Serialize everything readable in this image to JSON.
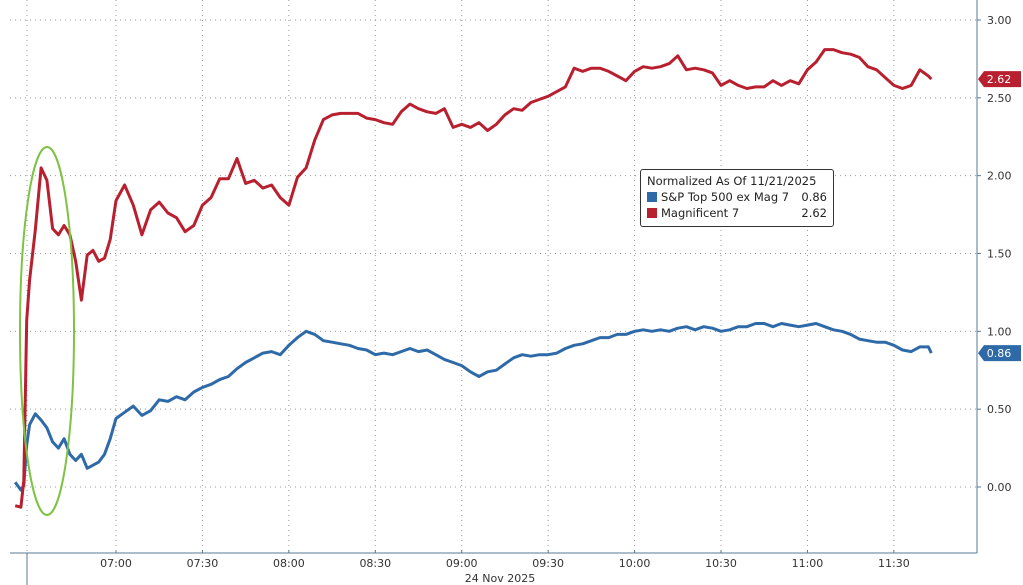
{
  "chart_data": {
    "type": "line",
    "xlabel": "24 Nov 2025",
    "x_ticks": [
      "07:00",
      "07:30",
      "08:00",
      "08:30",
      "09:00",
      "09:30",
      "10:00",
      "10:30",
      "11:00",
      "11:30"
    ],
    "y_ticks": [
      "0.00",
      "0.50",
      "1.00",
      "1.50",
      "2.00",
      "2.50",
      "3.00"
    ],
    "ylim": [
      -0.4,
      3.1
    ],
    "y_axis_side": "right",
    "grid": true,
    "legend_position": "center-right",
    "legend_title": "Normalized As Of 11/21/2025",
    "x": [
      "06:25",
      "06:27",
      "06:28",
      "06:29",
      "06:30",
      "06:32",
      "06:34",
      "06:36",
      "06:38",
      "06:40",
      "06:42",
      "06:44",
      "06:46",
      "06:48",
      "06:50",
      "06:52",
      "06:54",
      "06:56",
      "06:58",
      "07:00",
      "07:03",
      "07:06",
      "07:09",
      "07:12",
      "07:15",
      "07:18",
      "07:21",
      "07:24",
      "07:27",
      "07:30",
      "07:33",
      "07:36",
      "07:39",
      "07:42",
      "07:45",
      "07:48",
      "07:51",
      "07:54",
      "07:57",
      "08:00",
      "08:03",
      "08:06",
      "08:09",
      "08:12",
      "08:15",
      "08:18",
      "08:21",
      "08:24",
      "08:27",
      "08:30",
      "08:33",
      "08:36",
      "08:39",
      "08:42",
      "08:45",
      "08:48",
      "08:51",
      "08:54",
      "08:57",
      "09:00",
      "09:03",
      "09:06",
      "09:09",
      "09:12",
      "09:15",
      "09:18",
      "09:21",
      "09:24",
      "09:27",
      "09:30",
      "09:33",
      "09:36",
      "09:39",
      "09:42",
      "09:45",
      "09:48",
      "09:51",
      "09:54",
      "09:57",
      "10:00",
      "10:03",
      "10:06",
      "10:09",
      "10:12",
      "10:15",
      "10:18",
      "10:21",
      "10:24",
      "10:27",
      "10:30",
      "10:33",
      "10:36",
      "10:39",
      "10:42",
      "10:45",
      "10:48",
      "10:51",
      "10:54",
      "10:57",
      "11:00",
      "11:03",
      "11:06",
      "11:09",
      "11:12",
      "11:15",
      "11:18",
      "11:21",
      "11:24",
      "11:27",
      "11:30",
      "11:33",
      "11:36",
      "11:39",
      "11:42",
      "11:43"
    ],
    "series": [
      {
        "name": "S&P Top 500 ex Mag 7",
        "last": "0.86",
        "color": "#2f6aa8",
        "values": [
          0.03,
          -0.02,
          0.01,
          0.27,
          0.4,
          0.47,
          0.43,
          0.38,
          0.29,
          0.25,
          0.31,
          0.21,
          0.17,
          0.21,
          0.12,
          0.14,
          0.16,
          0.21,
          0.31,
          0.44,
          0.48,
          0.52,
          0.46,
          0.49,
          0.56,
          0.55,
          0.58,
          0.56,
          0.61,
          0.64,
          0.66,
          0.69,
          0.71,
          0.76,
          0.8,
          0.83,
          0.86,
          0.87,
          0.85,
          0.91,
          0.96,
          1.0,
          0.98,
          0.94,
          0.93,
          0.92,
          0.91,
          0.89,
          0.88,
          0.85,
          0.86,
          0.85,
          0.87,
          0.89,
          0.87,
          0.88,
          0.85,
          0.82,
          0.8,
          0.78,
          0.74,
          0.71,
          0.74,
          0.75,
          0.79,
          0.83,
          0.85,
          0.84,
          0.85,
          0.85,
          0.86,
          0.89,
          0.91,
          0.92,
          0.94,
          0.96,
          0.96,
          0.98,
          0.98,
          1.0,
          1.01,
          1.0,
          1.01,
          1.0,
          1.02,
          1.03,
          1.01,
          1.03,
          1.02,
          1.0,
          1.01,
          1.03,
          1.03,
          1.05,
          1.05,
          1.03,
          1.05,
          1.04,
          1.03,
          1.04,
          1.05,
          1.03,
          1.01,
          1.0,
          0.98,
          0.95,
          0.94,
          0.93,
          0.93,
          0.91,
          0.88,
          0.87,
          0.9,
          0.9,
          0.86
        ]
      },
      {
        "name": "Magnificent 7",
        "last": "2.62",
        "color": "#b8202f",
        "values": [
          -0.12,
          -0.13,
          0.04,
          1.07,
          1.33,
          1.65,
          2.05,
          1.97,
          1.66,
          1.62,
          1.68,
          1.62,
          1.45,
          1.2,
          1.49,
          1.52,
          1.45,
          1.47,
          1.59,
          1.84,
          1.94,
          1.81,
          1.62,
          1.78,
          1.83,
          1.76,
          1.73,
          1.64,
          1.68,
          1.81,
          1.86,
          1.98,
          1.98,
          2.11,
          1.95,
          1.97,
          1.92,
          1.94,
          1.86,
          1.81,
          1.99,
          2.05,
          2.23,
          2.36,
          2.39,
          2.4,
          2.4,
          2.4,
          2.37,
          2.36,
          2.34,
          2.33,
          2.41,
          2.46,
          2.43,
          2.41,
          2.4,
          2.43,
          2.31,
          2.33,
          2.31,
          2.34,
          2.29,
          2.33,
          2.39,
          2.43,
          2.42,
          2.47,
          2.49,
          2.51,
          2.54,
          2.57,
          2.69,
          2.67,
          2.69,
          2.69,
          2.67,
          2.64,
          2.61,
          2.67,
          2.7,
          2.69,
          2.7,
          2.72,
          2.77,
          2.68,
          2.69,
          2.68,
          2.66,
          2.58,
          2.61,
          2.58,
          2.56,
          2.57,
          2.57,
          2.61,
          2.58,
          2.61,
          2.59,
          2.68,
          2.73,
          2.81,
          2.81,
          2.79,
          2.78,
          2.76,
          2.7,
          2.68,
          2.63,
          2.58,
          2.56,
          2.58,
          2.68,
          2.64,
          2.62
        ]
      }
    ],
    "annotation_color": "#7dc242"
  }
}
